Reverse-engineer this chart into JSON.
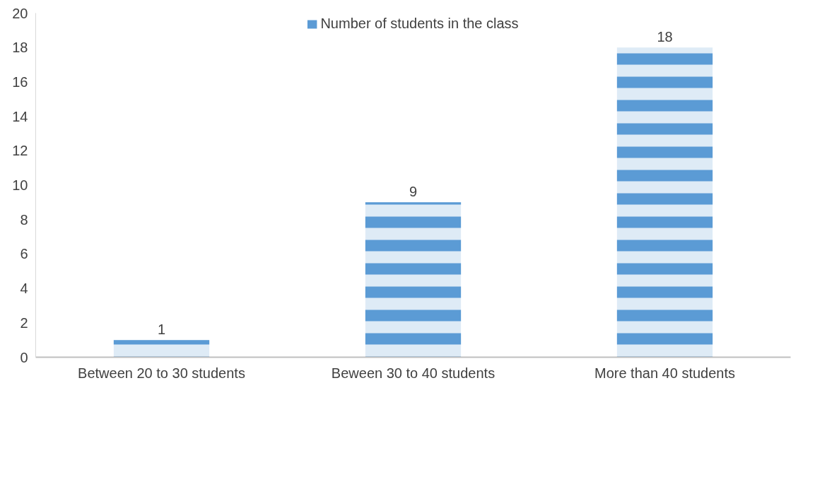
{
  "chart_data": {
    "type": "bar",
    "categories": [
      "Between 20 to 30 students",
      "Beween 30 to 40 students",
      "More than 40 students"
    ],
    "series": [
      {
        "name": "Number of students in the class",
        "color": "#5b9bd5",
        "values": [
          1,
          9,
          18
        ]
      }
    ],
    "ylim": [
      0,
      20
    ],
    "yticks": [
      0,
      2,
      4,
      6,
      8,
      10,
      12,
      14,
      16,
      18,
      20
    ],
    "grid": false,
    "legend": "top",
    "data_labels": true
  }
}
